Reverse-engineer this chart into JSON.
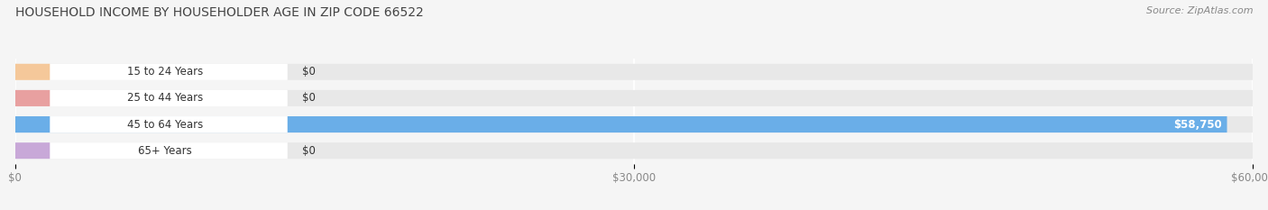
{
  "title": "HOUSEHOLD INCOME BY HOUSEHOLDER AGE IN ZIP CODE 66522",
  "source": "Source: ZipAtlas.com",
  "categories": [
    "15 to 24 Years",
    "25 to 44 Years",
    "45 to 64 Years",
    "65+ Years"
  ],
  "values": [
    0,
    0,
    58750,
    0
  ],
  "bar_colors": [
    "#f5c89a",
    "#e8a0a0",
    "#6aaee8",
    "#c8a8d8"
  ],
  "xlim": [
    0,
    60000
  ],
  "xtick_labels": [
    "$0",
    "$30,000",
    "$60,000"
  ],
  "bar_height": 0.62,
  "background_color": "#f5f5f5",
  "bar_bg_color": "#e8e8e8",
  "label_bg_color": "#ffffff",
  "value_labels": [
    "$0",
    "$0",
    "$58,750",
    "$0"
  ],
  "title_color": "#444444",
  "source_color": "#888888",
  "tick_color": "#888888"
}
